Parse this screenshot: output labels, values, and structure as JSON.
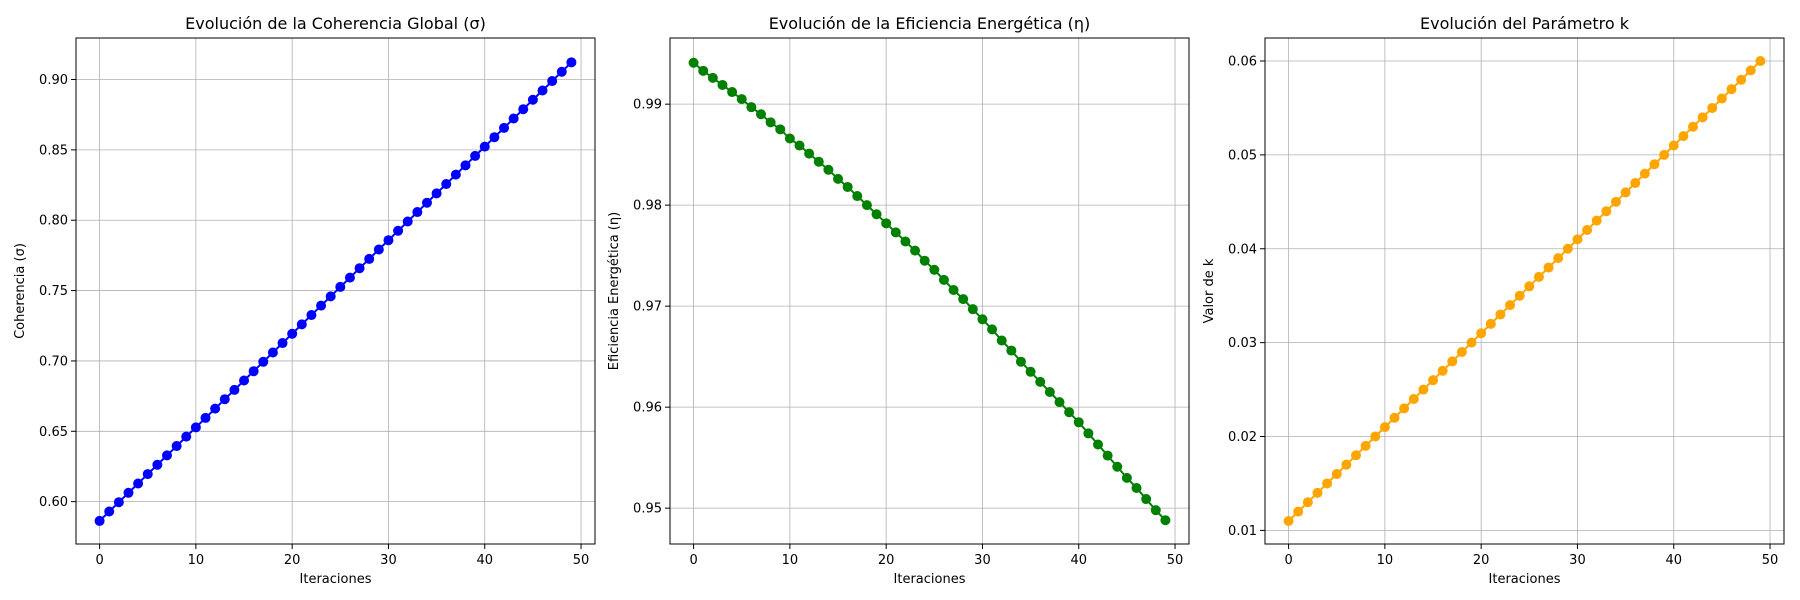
{
  "chart_data": [
    {
      "type": "line",
      "title": "Evolución de la Coherencia Global (σ)",
      "xlabel": "Iteraciones",
      "ylabel": "Coherencia (σ)",
      "xlim": [
        -2.45,
        51.45
      ],
      "ylim": [
        0.5699,
        0.9295
      ],
      "xticks": [
        0,
        10,
        20,
        30,
        40,
        50
      ],
      "yticks": [
        0.6,
        0.65,
        0.7,
        0.75,
        0.8,
        0.85,
        0.9
      ],
      "ytick_labels": [
        "0.60",
        "0.65",
        "0.70",
        "0.75",
        "0.80",
        "0.85",
        "0.90"
      ],
      "grid": true,
      "marker": "circle",
      "series": [
        {
          "color": "#0000ff",
          "x": [
            0,
            1,
            2,
            3,
            4,
            5,
            6,
            7,
            8,
            9,
            10,
            11,
            12,
            13,
            14,
            15,
            16,
            17,
            18,
            19,
            20,
            21,
            22,
            23,
            24,
            25,
            26,
            27,
            28,
            29,
            30,
            31,
            32,
            33,
            34,
            35,
            36,
            37,
            38,
            39,
            40,
            41,
            42,
            43,
            44,
            45,
            46,
            47,
            48,
            49
          ],
          "y": [
            0.5863,
            0.593,
            0.5996,
            0.6063,
            0.6129,
            0.6196,
            0.6262,
            0.6329,
            0.6395,
            0.6462,
            0.6528,
            0.6595,
            0.6661,
            0.6728,
            0.6794,
            0.6861,
            0.6927,
            0.6994,
            0.706,
            0.7127,
            0.7193,
            0.726,
            0.7326,
            0.7393,
            0.7459,
            0.7526,
            0.7592,
            0.7659,
            0.7725,
            0.7792,
            0.7858,
            0.7925,
            0.7991,
            0.8058,
            0.8124,
            0.8191,
            0.8257,
            0.8324,
            0.839,
            0.8457,
            0.8523,
            0.859,
            0.8656,
            0.8723,
            0.8789,
            0.8856,
            0.8922,
            0.8989,
            0.9055,
            0.9122
          ]
        }
      ]
    },
    {
      "type": "line",
      "title": "Evolución de la Eficiencia Energética (η)",
      "xlabel": "Iteraciones",
      "ylabel": "Eficiencia Energética (η)",
      "xlim": [
        -2.45,
        51.45
      ],
      "ylim": [
        0.94645,
        0.99655
      ],
      "xticks": [
        0,
        10,
        20,
        30,
        40,
        50
      ],
      "yticks": [
        0.95,
        0.96,
        0.97,
        0.98,
        0.99
      ],
      "ytick_labels": [
        "0.95",
        "0.96",
        "0.97",
        "0.98",
        "0.99"
      ],
      "grid": true,
      "marker": "circle",
      "series": [
        {
          "color": "#008000",
          "x": [
            0,
            1,
            2,
            3,
            4,
            5,
            6,
            7,
            8,
            9,
            10,
            11,
            12,
            13,
            14,
            15,
            16,
            17,
            18,
            19,
            20,
            21,
            22,
            23,
            24,
            25,
            26,
            27,
            28,
            29,
            30,
            31,
            32,
            33,
            34,
            35,
            36,
            37,
            38,
            39,
            40,
            41,
            42,
            43,
            44,
            45,
            46,
            47,
            48,
            49
          ],
          "y": [
            0.9941,
            0.9933,
            0.9926,
            0.9919,
            0.9912,
            0.9905,
            0.9897,
            0.989,
            0.9882,
            0.9875,
            0.9866,
            0.9859,
            0.9851,
            0.9843,
            0.9835,
            0.9826,
            0.9818,
            0.9809,
            0.98,
            0.9791,
            0.9782,
            0.9773,
            0.9764,
            0.9755,
            0.9745,
            0.9736,
            0.9726,
            0.9716,
            0.9707,
            0.9697,
            0.9687,
            0.9677,
            0.9666,
            0.9656,
            0.9645,
            0.9635,
            0.9625,
            0.9615,
            0.9605,
            0.9595,
            0.9585,
            0.9574,
            0.9563,
            0.9552,
            0.9541,
            0.953,
            0.952,
            0.9509,
            0.9498,
            0.9488
          ]
        }
      ]
    },
    {
      "type": "line",
      "title": "Evolución del Parámetro k",
      "xlabel": "Iteraciones",
      "ylabel": "Valor de k",
      "xlim": [
        -2.45,
        51.45
      ],
      "ylim": [
        0.00855,
        0.06245
      ],
      "xticks": [
        0,
        10,
        20,
        30,
        40,
        50
      ],
      "yticks": [
        0.01,
        0.02,
        0.03,
        0.04,
        0.05,
        0.06
      ],
      "ytick_labels": [
        "0.01",
        "0.02",
        "0.03",
        "0.04",
        "0.05",
        "0.06"
      ],
      "grid": true,
      "marker": "circle",
      "series": [
        {
          "color": "#ffa500",
          "x": [
            0,
            1,
            2,
            3,
            4,
            5,
            6,
            7,
            8,
            9,
            10,
            11,
            12,
            13,
            14,
            15,
            16,
            17,
            18,
            19,
            20,
            21,
            22,
            23,
            24,
            25,
            26,
            27,
            28,
            29,
            30,
            31,
            32,
            33,
            34,
            35,
            36,
            37,
            38,
            39,
            40,
            41,
            42,
            43,
            44,
            45,
            46,
            47,
            48,
            49
          ],
          "y": [
            0.011,
            0.012,
            0.013,
            0.014,
            0.015,
            0.016,
            0.017,
            0.018,
            0.019,
            0.02,
            0.021,
            0.022,
            0.023,
            0.024,
            0.025,
            0.026,
            0.027,
            0.028,
            0.029,
            0.03,
            0.031,
            0.032,
            0.033,
            0.034,
            0.035,
            0.036,
            0.037,
            0.038,
            0.039,
            0.04,
            0.041,
            0.042,
            0.043,
            0.044,
            0.045,
            0.046,
            0.047,
            0.048,
            0.049,
            0.05,
            0.051,
            0.052,
            0.053,
            0.054,
            0.055,
            0.056,
            0.057,
            0.058,
            0.059,
            0.06
          ]
        }
      ]
    }
  ]
}
